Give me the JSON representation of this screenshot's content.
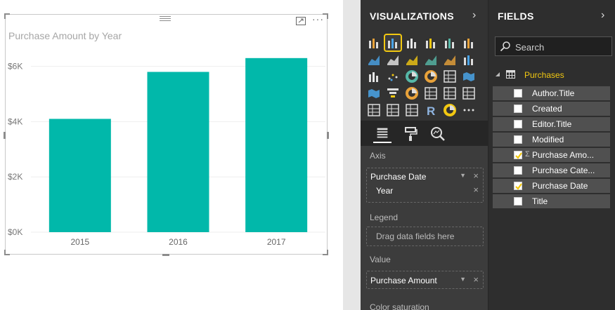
{
  "visual": {
    "title": "Purchase Amount by Year",
    "more_glyph": "···"
  },
  "chart_data": {
    "type": "bar",
    "title": "Purchase Amount by Year",
    "categories": [
      "2015",
      "2016",
      "2017"
    ],
    "values": [
      4100,
      5800,
      6300
    ],
    "ylim": [
      0,
      6600
    ],
    "yticks": [
      0,
      2000,
      4000,
      6000
    ],
    "ytick_labels": [
      "$0K",
      "$2K",
      "$4K",
      "$6K"
    ],
    "bar_color": "#01b8aa",
    "grid": true
  },
  "viz_pane": {
    "title": "VISUALIZATIONS",
    "chevron": "›",
    "axis_label": "Axis",
    "axis_field": "Purchase Date",
    "axis_subfield": "Year",
    "legend_label": "Legend",
    "legend_placeholder": "Drag data fields here",
    "value_label": "Value",
    "value_field": "Purchase Amount",
    "color_saturation_label": "Color saturation",
    "remove_glyph": "×",
    "dropdown_glyph": "▼"
  },
  "fields_pane": {
    "title": "FIELDS",
    "chevron": "›",
    "search_placeholder": "Search",
    "table_name": "Purchases",
    "fields": [
      {
        "name": "Author.Title",
        "checked": false,
        "sigma": false
      },
      {
        "name": "Created",
        "checked": false,
        "sigma": false
      },
      {
        "name": "Editor.Title",
        "checked": false,
        "sigma": false
      },
      {
        "name": "Modified",
        "checked": false,
        "sigma": false
      },
      {
        "name": "Purchase Amo...",
        "checked": true,
        "sigma": true
      },
      {
        "name": "Purchase Cate...",
        "checked": false,
        "sigma": false
      },
      {
        "name": "Purchase Date",
        "checked": true,
        "sigma": false
      },
      {
        "name": "Title",
        "checked": false,
        "sigma": false
      }
    ]
  },
  "colors": {
    "accent": "#f2c811",
    "bar": "#01b8aa",
    "pane_dark": "#333333"
  }
}
